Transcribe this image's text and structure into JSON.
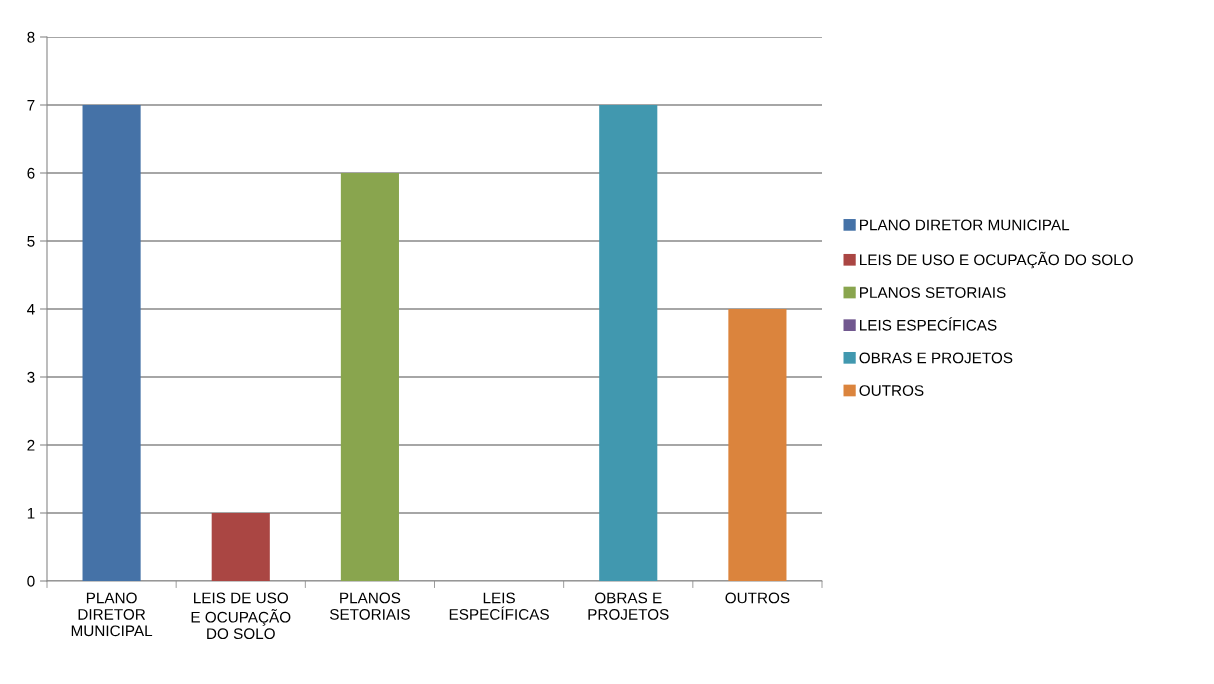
{
  "chart_data": {
    "type": "bar",
    "categories": [
      "PLANO\nDIRETOR\nMUNICIPAL",
      "LEIS DE USO\nE OCUPAÇÃO\nDO SOLO",
      "PLANOS\nSETORIAIS",
      "LEIS\nESPECÍFICAS",
      "OBRAS E\nPROJETOS",
      "OUTROS"
    ],
    "series": [
      {
        "name": "PLANO DIRETOR MUNICIPAL",
        "color": "#4572a7",
        "values": [
          7,
          null,
          null,
          null,
          null,
          null
        ]
      },
      {
        "name": "LEIS DE USO E OCUPAÇÃO DO SOLO",
        "color": "#aa4643",
        "values": [
          null,
          1,
          null,
          null,
          null,
          null
        ]
      },
      {
        "name": "PLANOS SETORIAIS",
        "color": "#89a54e",
        "values": [
          null,
          null,
          6,
          null,
          null,
          null
        ]
      },
      {
        "name": "LEIS ESPECÍFICAS",
        "color": "#71588f",
        "values": [
          null,
          null,
          null,
          0,
          null,
          null
        ]
      },
      {
        "name": "OBRAS E PROJETOS",
        "color": "#4198af",
        "values": [
          null,
          null,
          null,
          null,
          7,
          null
        ]
      },
      {
        "name": "OUTROS",
        "color": "#db843d",
        "values": [
          null,
          null,
          null,
          null,
          null,
          4
        ]
      }
    ],
    "ylim": [
      0,
      8
    ],
    "yticks": [
      0,
      1,
      2,
      3,
      4,
      5,
      6,
      7,
      8
    ],
    "grid": "y",
    "legend": "right"
  }
}
